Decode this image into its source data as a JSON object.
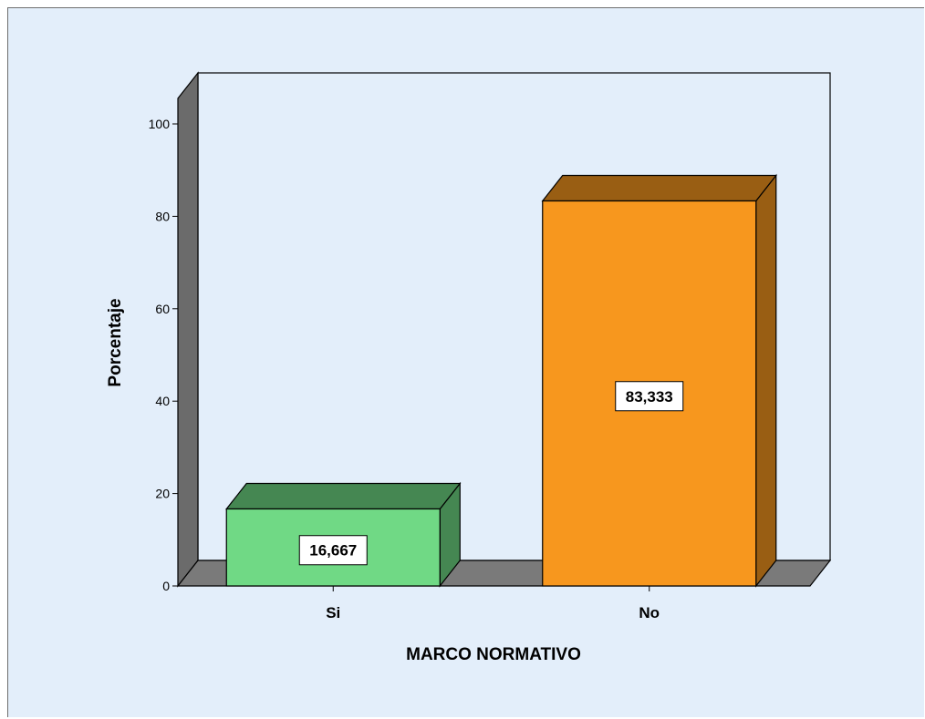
{
  "chart_data": {
    "type": "bar",
    "categories": [
      "Si",
      "No"
    ],
    "values": [
      16.667,
      83.333
    ],
    "data_labels": [
      "16,667",
      "83,333"
    ],
    "colors": [
      "#70d985",
      "#f7971e"
    ],
    "xlabel": "MARCO NORMATIVO",
    "ylabel": "Porcentaje",
    "ylim": [
      0,
      100
    ],
    "yticks": [
      0,
      20,
      40,
      60,
      80,
      100
    ],
    "ytick_labels": [
      "0",
      "20",
      "40",
      "60",
      "80",
      "100"
    ],
    "grid": false,
    "style": "3d"
  }
}
